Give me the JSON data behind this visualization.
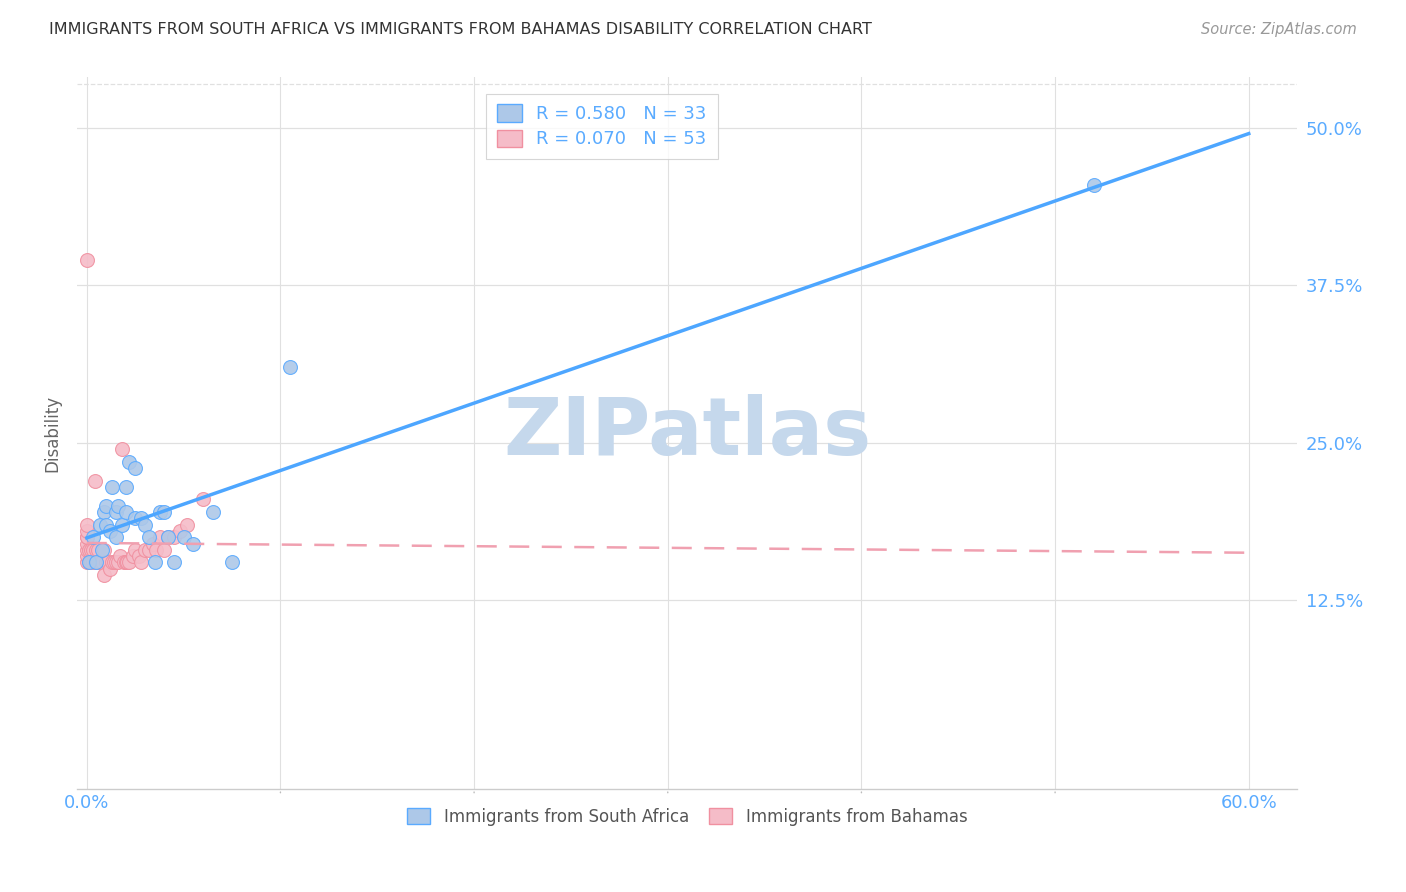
{
  "title": "IMMIGRANTS FROM SOUTH AFRICA VS IMMIGRANTS FROM BAHAMAS DISABILITY CORRELATION CHART",
  "source": "Source: ZipAtlas.com",
  "ylabel": "Disability",
  "ylim": [
    -0.025,
    0.54
  ],
  "xlim": [
    -0.005,
    0.625
  ],
  "ytick_vals": [
    0.125,
    0.25,
    0.375,
    0.5
  ],
  "ytick_labels": [
    "12.5%",
    "25.0%",
    "37.5%",
    "50.0%"
  ],
  "xtick_vals": [
    0.0,
    0.1,
    0.2,
    0.3,
    0.4,
    0.5,
    0.6
  ],
  "legend_top": [
    "R = 0.580   N = 33",
    "R = 0.070   N = 53"
  ],
  "legend_bottom": [
    "Immigrants from South Africa",
    "Immigrants from Bahamas"
  ],
  "watermark": "ZIPatlas",
  "sa_color": "#adc8e8",
  "sa_edge": "#5aaaff",
  "bah_color": "#f5bcc8",
  "bah_edge": "#f090a0",
  "sa_line_color": "#4da6ff",
  "bah_line_color": "#f0a0b0",
  "grid_color": "#e0e0e0",
  "axis_tick_color": "#5aabff",
  "watermark_color": "#c5d8ec",
  "south_africa_x": [
    0.001,
    0.003,
    0.005,
    0.007,
    0.008,
    0.009,
    0.01,
    0.01,
    0.012,
    0.013,
    0.015,
    0.015,
    0.016,
    0.018,
    0.02,
    0.02,
    0.022,
    0.025,
    0.025,
    0.028,
    0.03,
    0.032,
    0.035,
    0.038,
    0.04,
    0.042,
    0.045,
    0.05,
    0.055,
    0.065,
    0.075,
    0.105,
    0.52
  ],
  "south_africa_y": [
    0.155,
    0.175,
    0.155,
    0.185,
    0.165,
    0.195,
    0.185,
    0.2,
    0.18,
    0.215,
    0.175,
    0.195,
    0.2,
    0.185,
    0.195,
    0.215,
    0.235,
    0.19,
    0.23,
    0.19,
    0.185,
    0.175,
    0.155,
    0.195,
    0.195,
    0.175,
    0.155,
    0.175,
    0.17,
    0.195,
    0.155,
    0.31,
    0.455
  ],
  "bahamas_x": [
    0.0,
    0.0,
    0.0,
    0.0,
    0.0,
    0.0,
    0.0,
    0.0,
    0.0,
    0.001,
    0.001,
    0.002,
    0.002,
    0.003,
    0.003,
    0.004,
    0.004,
    0.005,
    0.005,
    0.006,
    0.006,
    0.007,
    0.008,
    0.009,
    0.009,
    0.01,
    0.011,
    0.012,
    0.013,
    0.014,
    0.015,
    0.016,
    0.017,
    0.018,
    0.019,
    0.02,
    0.021,
    0.022,
    0.024,
    0.025,
    0.027,
    0.028,
    0.03,
    0.032,
    0.034,
    0.036,
    0.038,
    0.04,
    0.042,
    0.045,
    0.048,
    0.052,
    0.06
  ],
  "bahamas_y": [
    0.155,
    0.16,
    0.165,
    0.17,
    0.175,
    0.175,
    0.18,
    0.185,
    0.395,
    0.155,
    0.165,
    0.155,
    0.165,
    0.155,
    0.165,
    0.155,
    0.22,
    0.155,
    0.165,
    0.155,
    0.165,
    0.155,
    0.155,
    0.145,
    0.165,
    0.155,
    0.155,
    0.15,
    0.155,
    0.155,
    0.155,
    0.155,
    0.16,
    0.245,
    0.155,
    0.155,
    0.155,
    0.155,
    0.16,
    0.165,
    0.16,
    0.155,
    0.165,
    0.165,
    0.17,
    0.165,
    0.175,
    0.165,
    0.175,
    0.175,
    0.18,
    0.185,
    0.205
  ]
}
